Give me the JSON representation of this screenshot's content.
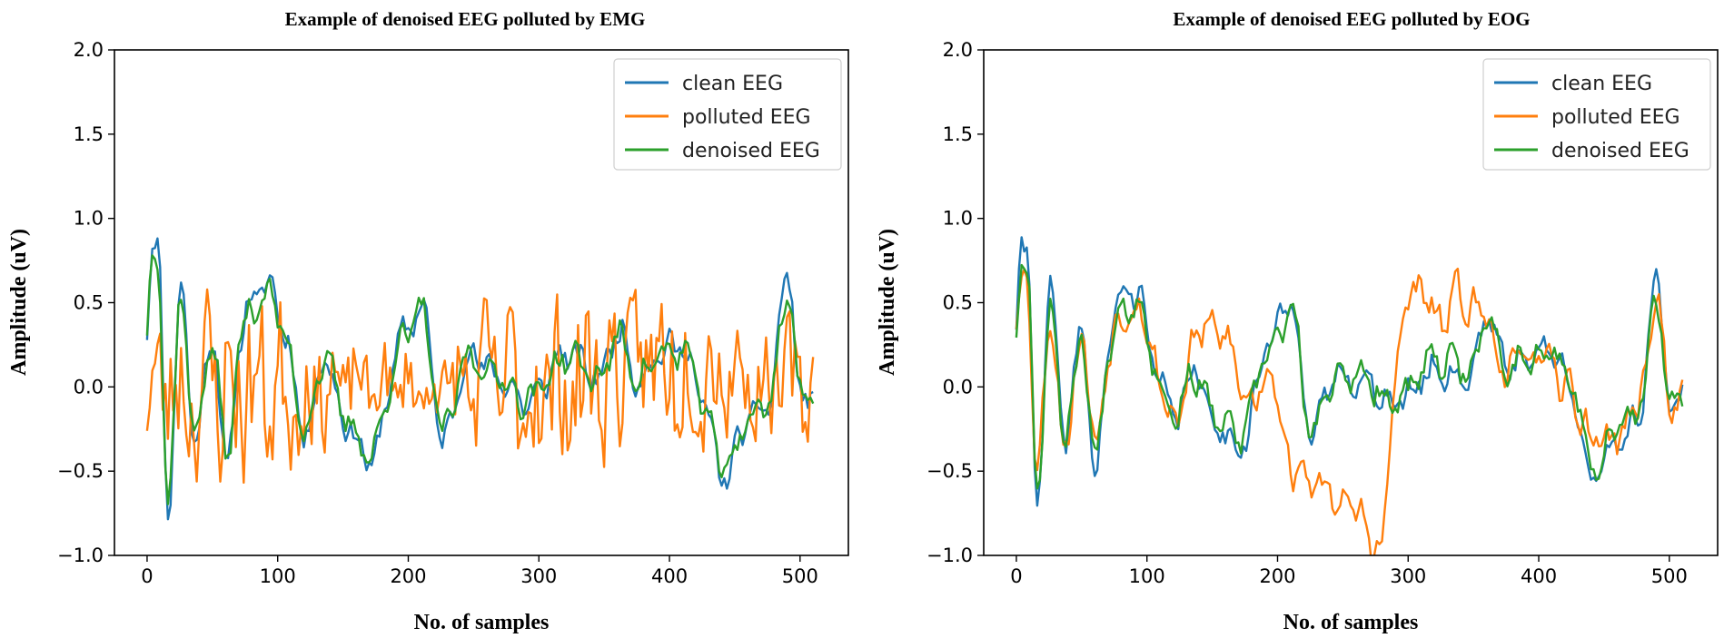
{
  "chart_data": [
    {
      "type": "line",
      "title": "Example of denoised EEG polluted by EMG",
      "xlabel": "No. of samples",
      "ylabel": "Amplitude (uV)",
      "xlim": [
        -25,
        537
      ],
      "ylim": [
        -1.0,
        2.0
      ],
      "xticks": [
        0,
        100,
        200,
        300,
        400,
        500
      ],
      "xtick_labels": [
        "0",
        "100",
        "200",
        "300",
        "400",
        "500"
      ],
      "yticks": [
        -1.0,
        -0.5,
        0.0,
        0.5,
        1.0,
        1.5,
        2.0
      ],
      "ytick_labels": [
        "−1.0",
        "−0.5",
        "0.0",
        "0.5",
        "1.0",
        "1.5",
        "2.0"
      ],
      "legend_position": "top-right",
      "series": [
        {
          "name": "clean EEG",
          "color": "#1f77b4",
          "seed": 11,
          "pattern": "eeg",
          "anchors": [
            [
              0,
              0.4
            ],
            [
              3,
              1.0
            ],
            [
              8,
              0.8
            ],
            [
              15,
              -0.85
            ],
            [
              25,
              0.68
            ],
            [
              35,
              -0.35
            ],
            [
              50,
              0.35
            ],
            [
              60,
              -0.6
            ],
            [
              70,
              0.3
            ],
            [
              80,
              0.55
            ],
            [
              95,
              0.6
            ],
            [
              105,
              0.3
            ],
            [
              120,
              -0.3
            ],
            [
              135,
              0.2
            ],
            [
              150,
              -0.2
            ],
            [
              170,
              -0.45
            ],
            [
              195,
              0.3
            ],
            [
              210,
              0.5
            ],
            [
              225,
              -0.35
            ],
            [
              245,
              0.2
            ],
            [
              270,
              0.05
            ],
            [
              290,
              -0.1
            ],
            [
              320,
              0.2
            ],
            [
              345,
              0.05
            ],
            [
              360,
              0.35
            ],
            [
              375,
              0.05
            ],
            [
              390,
              0.2
            ],
            [
              410,
              0.25
            ],
            [
              425,
              -0.1
            ],
            [
              440,
              -0.55
            ],
            [
              460,
              -0.2
            ],
            [
              475,
              -0.1
            ],
            [
              490,
              0.72
            ],
            [
              500,
              -0.15
            ],
            [
              510,
              0.0
            ]
          ]
        },
        {
          "name": "polluted EEG",
          "color": "#ff7f0e",
          "seed": 23,
          "pattern": "noise",
          "anchors": [
            [
              0,
              0.0
            ],
            [
              100,
              0.0
            ],
            [
              200,
              0.0
            ],
            [
              300,
              0.0
            ],
            [
              380,
              0.1
            ],
            [
              410,
              0.2
            ],
            [
              440,
              0.15
            ],
            [
              470,
              0.0
            ],
            [
              510,
              0.0
            ]
          ]
        },
        {
          "name": "denoised EEG",
          "color": "#2ca02c",
          "seed": 37,
          "pattern": "eeg",
          "anchors": [
            [
              0,
              0.4
            ],
            [
              3,
              0.9
            ],
            [
              8,
              0.7
            ],
            [
              15,
              -0.75
            ],
            [
              25,
              0.6
            ],
            [
              35,
              -0.3
            ],
            [
              50,
              0.3
            ],
            [
              60,
              -0.5
            ],
            [
              70,
              0.28
            ],
            [
              80,
              0.5
            ],
            [
              95,
              0.55
            ],
            [
              105,
              0.25
            ],
            [
              120,
              -0.25
            ],
            [
              135,
              0.18
            ],
            [
              150,
              -0.18
            ],
            [
              170,
              -0.4
            ],
            [
              195,
              0.28
            ],
            [
              210,
              0.45
            ],
            [
              225,
              -0.3
            ],
            [
              245,
              0.18
            ],
            [
              270,
              0.05
            ],
            [
              290,
              -0.08
            ],
            [
              320,
              0.18
            ],
            [
              345,
              0.05
            ],
            [
              360,
              0.3
            ],
            [
              375,
              0.05
            ],
            [
              390,
              0.18
            ],
            [
              410,
              0.22
            ],
            [
              425,
              -0.1
            ],
            [
              440,
              -0.5
            ],
            [
              460,
              -0.18
            ],
            [
              475,
              -0.1
            ],
            [
              490,
              0.6
            ],
            [
              500,
              -0.12
            ],
            [
              510,
              0.0
            ]
          ]
        }
      ]
    },
    {
      "type": "line",
      "title": "Example of denoised EEG polluted by EOG",
      "xlabel": "No. of samples",
      "ylabel": "Amplitude (uV)",
      "xlim": [
        -25,
        537
      ],
      "ylim": [
        -1.0,
        2.0
      ],
      "xticks": [
        0,
        100,
        200,
        300,
        400,
        500
      ],
      "xtick_labels": [
        "0",
        "100",
        "200",
        "300",
        "400",
        "500"
      ],
      "yticks": [
        -1.0,
        -0.5,
        0.0,
        0.5,
        1.0,
        1.5,
        2.0
      ],
      "ytick_labels": [
        "−1.0",
        "−0.5",
        "0.0",
        "0.5",
        "1.0",
        "1.5",
        "2.0"
      ],
      "legend_position": "top-right",
      "series": [
        {
          "name": "clean EEG",
          "color": "#1f77b4",
          "seed": 41,
          "pattern": "eeg",
          "anchors": [
            [
              0,
              0.4
            ],
            [
              3,
              1.0
            ],
            [
              8,
              0.8
            ],
            [
              15,
              -0.85
            ],
            [
              25,
              0.68
            ],
            [
              35,
              -0.35
            ],
            [
              50,
              0.35
            ],
            [
              60,
              -0.6
            ],
            [
              70,
              0.3
            ],
            [
              80,
              0.55
            ],
            [
              95,
              0.55
            ],
            [
              105,
              0.1
            ],
            [
              120,
              -0.2
            ],
            [
              135,
              0.1
            ],
            [
              150,
              -0.2
            ],
            [
              170,
              -0.35
            ],
            [
              195,
              0.3
            ],
            [
              210,
              0.52
            ],
            [
              225,
              -0.3
            ],
            [
              245,
              0.1
            ],
            [
              270,
              0.0
            ],
            [
              290,
              -0.1
            ],
            [
              320,
              0.1
            ],
            [
              345,
              0.05
            ],
            [
              360,
              0.45
            ],
            [
              375,
              0.1
            ],
            [
              390,
              0.2
            ],
            [
              410,
              0.2
            ],
            [
              425,
              0.0
            ],
            [
              440,
              -0.6
            ],
            [
              460,
              -0.3
            ],
            [
              475,
              -0.2
            ],
            [
              490,
              0.72
            ],
            [
              500,
              -0.2
            ],
            [
              510,
              0.0
            ]
          ]
        },
        {
          "name": "polluted EEG",
          "color": "#ff7f0e",
          "seed": 53,
          "pattern": "eog",
          "anchors": [
            [
              0,
              0.4
            ],
            [
              3,
              0.75
            ],
            [
              8,
              0.6
            ],
            [
              15,
              -0.6
            ],
            [
              25,
              0.5
            ],
            [
              35,
              -0.35
            ],
            [
              50,
              0.3
            ],
            [
              60,
              -0.4
            ],
            [
              70,
              0.25
            ],
            [
              80,
              0.45
            ],
            [
              95,
              0.5
            ],
            [
              105,
              0.1
            ],
            [
              120,
              -0.2
            ],
            [
              140,
              0.35
            ],
            [
              160,
              0.3
            ],
            [
              175,
              -0.1
            ],
            [
              195,
              0.1
            ],
            [
              210,
              -0.5
            ],
            [
              235,
              -0.6
            ],
            [
              260,
              -0.75
            ],
            [
              278,
              -1.0
            ],
            [
              290,
              0.1
            ],
            [
              300,
              0.6
            ],
            [
              315,
              0.5
            ],
            [
              325,
              0.35
            ],
            [
              335,
              0.55
            ],
            [
              355,
              0.45
            ],
            [
              375,
              0.1
            ],
            [
              395,
              0.2
            ],
            [
              420,
              0.0
            ],
            [
              440,
              -0.3
            ],
            [
              460,
              -0.3
            ],
            [
              475,
              -0.1
            ],
            [
              490,
              0.55
            ],
            [
              500,
              -0.15
            ],
            [
              510,
              -0.1
            ]
          ]
        },
        {
          "name": "denoised EEG",
          "color": "#2ca02c",
          "seed": 67,
          "pattern": "eeg",
          "anchors": [
            [
              0,
              0.4
            ],
            [
              3,
              0.85
            ],
            [
              8,
              0.7
            ],
            [
              15,
              -0.7
            ],
            [
              25,
              0.55
            ],
            [
              35,
              -0.3
            ],
            [
              50,
              0.3
            ],
            [
              60,
              -0.5
            ],
            [
              70,
              0.28
            ],
            [
              80,
              0.5
            ],
            [
              95,
              0.5
            ],
            [
              105,
              0.1
            ],
            [
              120,
              -0.18
            ],
            [
              135,
              0.1
            ],
            [
              150,
              -0.18
            ],
            [
              170,
              -0.3
            ],
            [
              195,
              0.25
            ],
            [
              210,
              0.45
            ],
            [
              225,
              -0.3
            ],
            [
              245,
              0.1
            ],
            [
              270,
              0.02
            ],
            [
              290,
              -0.08
            ],
            [
              320,
              0.15
            ],
            [
              345,
              0.1
            ],
            [
              360,
              0.4
            ],
            [
              375,
              0.1
            ],
            [
              390,
              0.2
            ],
            [
              410,
              0.2
            ],
            [
              425,
              0.0
            ],
            [
              440,
              -0.5
            ],
            [
              460,
              -0.25
            ],
            [
              475,
              -0.15
            ],
            [
              490,
              0.5
            ],
            [
              500,
              -0.15
            ],
            [
              510,
              -0.05
            ]
          ]
        }
      ]
    }
  ]
}
